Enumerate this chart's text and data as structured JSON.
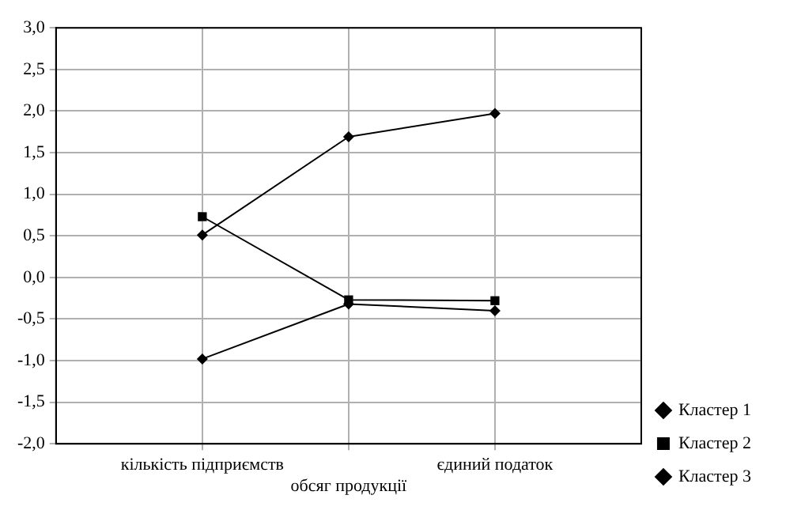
{
  "chart_data": {
    "type": "line",
    "categories": [
      "кількість підприємств",
      "обсяг продукції",
      "єдиний податок"
    ],
    "series": [
      {
        "name": "Кластер 1",
        "color": "#000000",
        "marker": "diamond",
        "values": [
          0.51,
          1.69,
          1.97
        ]
      },
      {
        "name": "Кластер 2",
        "color": "#000000",
        "marker": "square",
        "values": [
          0.73,
          -0.27,
          -0.28
        ]
      },
      {
        "name": "Кластер 3",
        "color": "#000000",
        "marker": "diamond",
        "values": [
          -0.98,
          -0.32,
          -0.4
        ]
      }
    ],
    "ylim": [
      -2,
      3
    ],
    "yticks": [
      {
        "value": -2,
        "label": "-2,0"
      },
      {
        "value": -1.5,
        "label": "-1,5"
      },
      {
        "value": -1,
        "label": "-1,0"
      },
      {
        "value": -0.5,
        "label": "-0,5"
      },
      {
        "value": 0,
        "label": "0,0"
      },
      {
        "value": 0.5,
        "label": "0,5"
      },
      {
        "value": 1,
        "label": "1,0"
      },
      {
        "value": 1.5,
        "label": "1,5"
      },
      {
        "value": 2,
        "label": "2,0"
      },
      {
        "value": 2.5,
        "label": "2,5"
      },
      {
        "value": 3,
        "label": "3,0"
      }
    ],
    "grid": true,
    "legend": "bottom right",
    "line_style": "solid"
  }
}
